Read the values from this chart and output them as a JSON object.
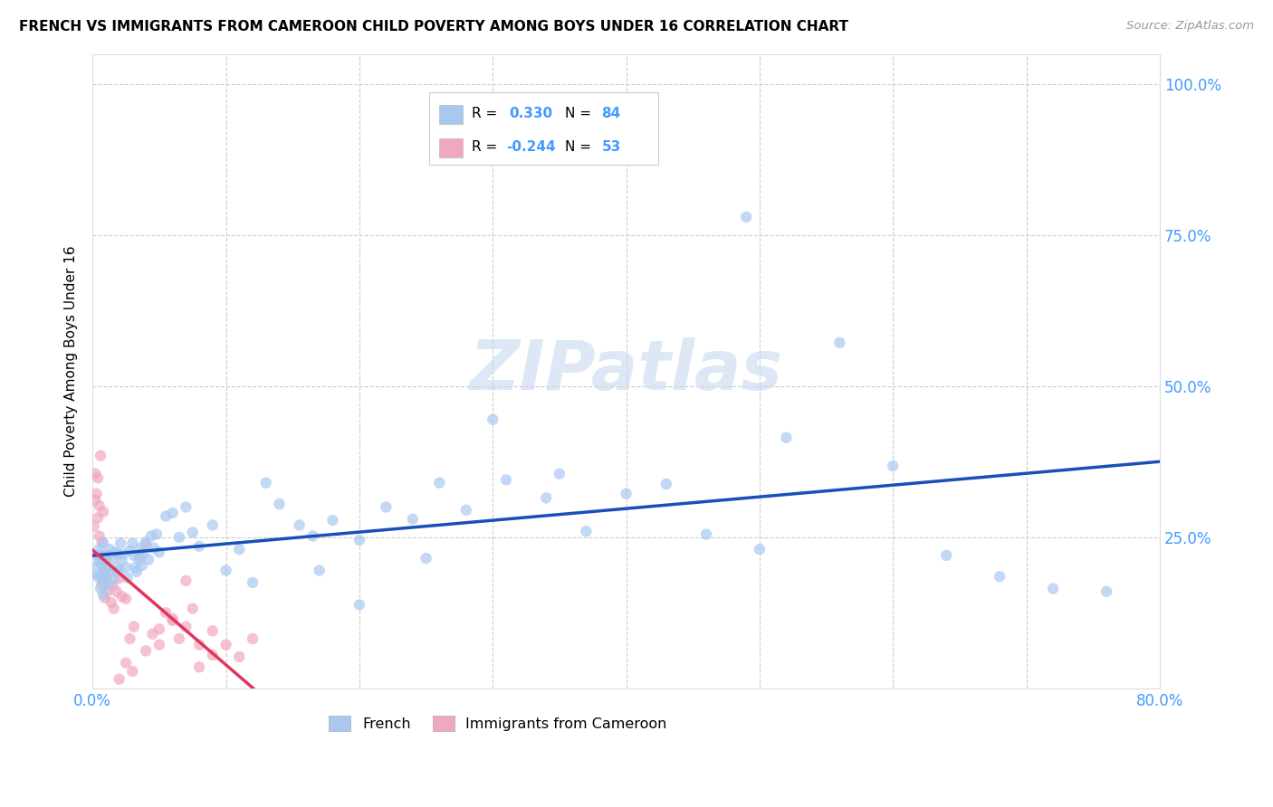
{
  "title": "FRENCH VS IMMIGRANTS FROM CAMEROON CHILD POVERTY AMONG BOYS UNDER 16 CORRELATION CHART",
  "source": "Source: ZipAtlas.com",
  "ylabel": "Child Poverty Among Boys Under 16",
  "xlim": [
    0.0,
    0.8
  ],
  "ylim": [
    0.0,
    1.05
  ],
  "yticks": [
    0.0,
    0.25,
    0.5,
    0.75,
    1.0
  ],
  "ytick_labels": [
    "",
    "25.0%",
    "50.0%",
    "75.0%",
    "100.0%"
  ],
  "xticks": [
    0.0,
    0.1,
    0.2,
    0.3,
    0.4,
    0.5,
    0.6,
    0.7,
    0.8
  ],
  "xtick_labels": [
    "0.0%",
    "",
    "",
    "",
    "",
    "",
    "",
    "",
    "80.0%"
  ],
  "french_R": 0.33,
  "french_N": 84,
  "cameroon_R": -0.244,
  "cameroon_N": 53,
  "french_color": "#a8c8f0",
  "cameroon_color": "#f0a8c0",
  "french_line_color": "#1a4fbb",
  "cameroon_line_color": "#e0365a",
  "background_color": "#ffffff",
  "grid_color": "#cccccc",
  "axis_color": "#4499ff",
  "watermark_color": "#c8d8f0",
  "watermark": "ZIPatlas",
  "french_x": [
    0.003,
    0.004,
    0.005,
    0.005,
    0.006,
    0.006,
    0.007,
    0.007,
    0.008,
    0.008,
    0.009,
    0.009,
    0.01,
    0.01,
    0.011,
    0.012,
    0.013,
    0.014,
    0.015,
    0.016,
    0.017,
    0.018,
    0.019,
    0.02,
    0.021,
    0.022,
    0.023,
    0.025,
    0.026,
    0.028,
    0.03,
    0.031,
    0.032,
    0.033,
    0.035,
    0.036,
    0.037,
    0.038,
    0.04,
    0.042,
    0.044,
    0.046,
    0.048,
    0.05,
    0.055,
    0.06,
    0.065,
    0.07,
    0.075,
    0.08,
    0.09,
    0.1,
    0.11,
    0.12,
    0.13,
    0.14,
    0.155,
    0.165,
    0.18,
    0.2,
    0.22,
    0.24,
    0.26,
    0.28,
    0.31,
    0.34,
    0.37,
    0.4,
    0.43,
    0.46,
    0.49,
    0.52,
    0.56,
    0.6,
    0.64,
    0.68,
    0.72,
    0.76,
    0.5,
    0.35,
    0.3,
    0.25,
    0.2,
    0.17
  ],
  "french_y": [
    0.195,
    0.185,
    0.21,
    0.23,
    0.165,
    0.22,
    0.205,
    0.18,
    0.24,
    0.155,
    0.195,
    0.215,
    0.18,
    0.205,
    0.22,
    0.172,
    0.23,
    0.195,
    0.215,
    0.182,
    0.225,
    0.2,
    0.222,
    0.195,
    0.24,
    0.212,
    0.222,
    0.2,
    0.183,
    0.228,
    0.24,
    0.22,
    0.2,
    0.193,
    0.213,
    0.232,
    0.203,
    0.222,
    0.242,
    0.213,
    0.252,
    0.232,
    0.255,
    0.225,
    0.285,
    0.29,
    0.25,
    0.3,
    0.258,
    0.235,
    0.27,
    0.195,
    0.23,
    0.175,
    0.34,
    0.305,
    0.27,
    0.252,
    0.278,
    0.245,
    0.3,
    0.28,
    0.34,
    0.295,
    0.345,
    0.315,
    0.26,
    0.322,
    0.338,
    0.255,
    0.78,
    0.415,
    0.572,
    0.368,
    0.22,
    0.185,
    0.165,
    0.16,
    0.23,
    0.355,
    0.445,
    0.215,
    0.138,
    0.195
  ],
  "french_sizes": [
    200,
    80,
    80,
    80,
    80,
    80,
    80,
    80,
    80,
    80,
    80,
    80,
    80,
    80,
    80,
    80,
    80,
    80,
    80,
    80,
    80,
    80,
    80,
    80,
    80,
    80,
    80,
    80,
    80,
    80,
    80,
    80,
    80,
    80,
    80,
    80,
    80,
    80,
    80,
    80,
    80,
    80,
    80,
    80,
    80,
    80,
    80,
    80,
    80,
    80,
    80,
    80,
    80,
    80,
    80,
    80,
    80,
    80,
    80,
    80,
    80,
    80,
    80,
    80,
    80,
    80,
    80,
    80,
    80,
    80,
    80,
    80,
    80,
    80,
    80,
    80,
    80,
    80,
    80,
    80,
    80,
    80,
    80,
    80
  ],
  "cameroon_x": [
    0.001,
    0.002,
    0.002,
    0.003,
    0.003,
    0.004,
    0.004,
    0.005,
    0.005,
    0.006,
    0.006,
    0.007,
    0.007,
    0.008,
    0.008,
    0.009,
    0.009,
    0.01,
    0.011,
    0.012,
    0.013,
    0.014,
    0.015,
    0.016,
    0.018,
    0.02,
    0.022,
    0.025,
    0.028,
    0.031,
    0.035,
    0.04,
    0.045,
    0.05,
    0.055,
    0.06,
    0.065,
    0.07,
    0.075,
    0.08,
    0.09,
    0.1,
    0.11,
    0.12,
    0.04,
    0.05,
    0.06,
    0.07,
    0.08,
    0.09,
    0.03,
    0.025,
    0.02
  ],
  "cameroon_y": [
    0.268,
    0.355,
    0.312,
    0.322,
    0.22,
    0.348,
    0.282,
    0.302,
    0.252,
    0.385,
    0.22,
    0.172,
    0.242,
    0.2,
    0.292,
    0.15,
    0.212,
    0.182,
    0.16,
    0.22,
    0.192,
    0.142,
    0.17,
    0.132,
    0.16,
    0.182,
    0.152,
    0.148,
    0.082,
    0.102,
    0.22,
    0.062,
    0.09,
    0.072,
    0.125,
    0.112,
    0.082,
    0.102,
    0.132,
    0.072,
    0.095,
    0.072,
    0.052,
    0.082,
    0.238,
    0.098,
    0.115,
    0.178,
    0.035,
    0.055,
    0.028,
    0.042,
    0.015
  ],
  "cameroon_sizes": [
    80,
    80,
    80,
    80,
    80,
    80,
    80,
    80,
    80,
    80,
    80,
    80,
    80,
    80,
    80,
    80,
    80,
    80,
    80,
    80,
    80,
    80,
    80,
    80,
    80,
    80,
    80,
    80,
    80,
    80,
    80,
    80,
    80,
    80,
    80,
    80,
    80,
    80,
    80,
    80,
    80,
    80,
    80,
    80,
    80,
    80,
    80,
    80,
    80,
    80,
    80,
    80,
    80
  ]
}
